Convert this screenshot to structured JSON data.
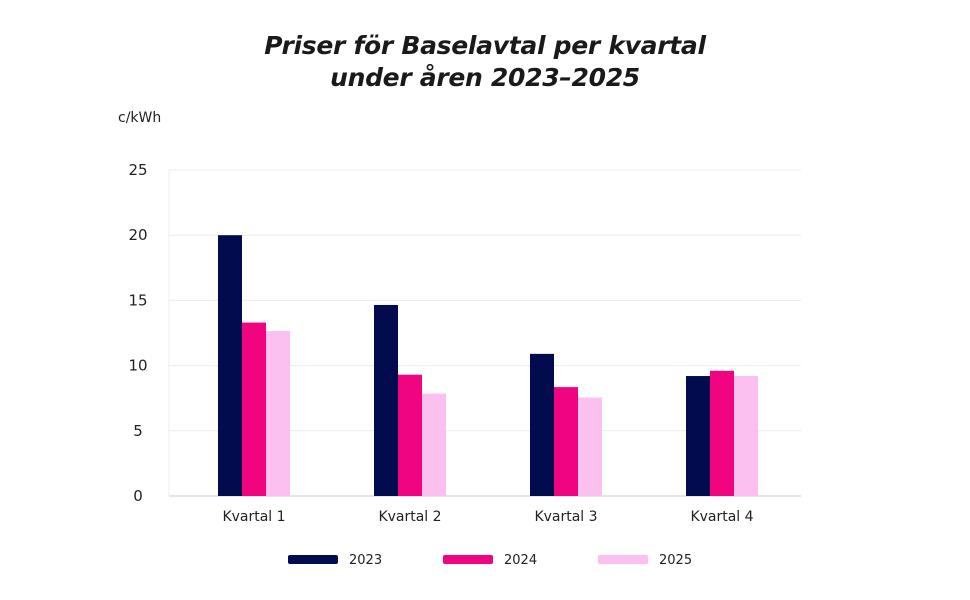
{
  "chart_data": {
    "type": "bar",
    "title": [
      "Priser för Baselavtal per kvartal",
      "under åren 2023–2025"
    ],
    "ylabel": "c/kWh",
    "xlabel": "",
    "ylim": [
      0,
      25
    ],
    "yticks": [
      0,
      5,
      10,
      15,
      20,
      25
    ],
    "grid": true,
    "legend_position": "bottom",
    "categories": [
      "Kvartal 1",
      "Kvartal 2",
      "Kvartal 3",
      "Kvartal 4"
    ],
    "series": [
      {
        "name": "2023",
        "color": "#020B4E",
        "values": [
          20.0,
          14.65,
          10.9,
          9.2
        ]
      },
      {
        "name": "2024",
        "color": "#F0047F",
        "values": [
          13.3,
          9.3,
          8.35,
          9.6
        ]
      },
      {
        "name": "2025",
        "color": "#FCC0F0",
        "values": [
          12.65,
          7.85,
          7.55,
          9.2
        ]
      }
    ]
  }
}
